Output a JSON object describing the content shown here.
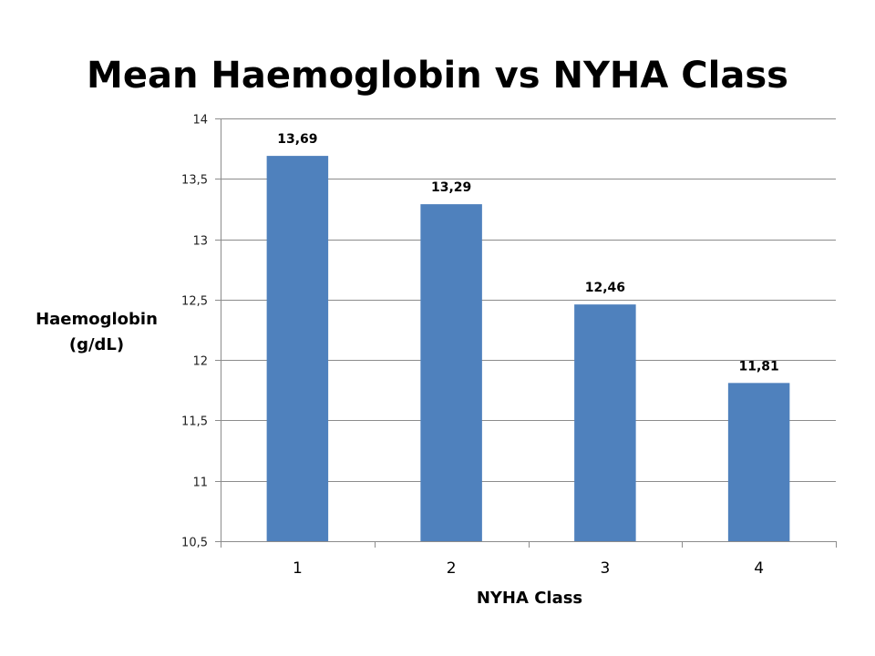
{
  "chart_data": {
    "type": "bar",
    "title": "Mean Haemoglobin vs NYHA Class",
    "xlabel": "NYHA Class",
    "ylabel_lines": [
      "Haemoglobin",
      "(g/dL)"
    ],
    "categories": [
      "1",
      "2",
      "3",
      "4"
    ],
    "values": [
      13.69,
      13.29,
      12.46,
      11.81
    ],
    "data_labels": [
      "13,69",
      "13,29",
      "12,46",
      "11,81"
    ],
    "ylim": [
      10.5,
      14
    ],
    "yticks": [
      10.5,
      11,
      11.5,
      12,
      12.5,
      13,
      13.5,
      14
    ],
    "ytick_labels": [
      "10,5",
      "11",
      "11,5",
      "12",
      "12,5",
      "13",
      "13,5",
      "14"
    ],
    "grid": true,
    "legend": "none",
    "bar_color": "#4f81bd",
    "gridline_color": "#8c8c8c"
  }
}
